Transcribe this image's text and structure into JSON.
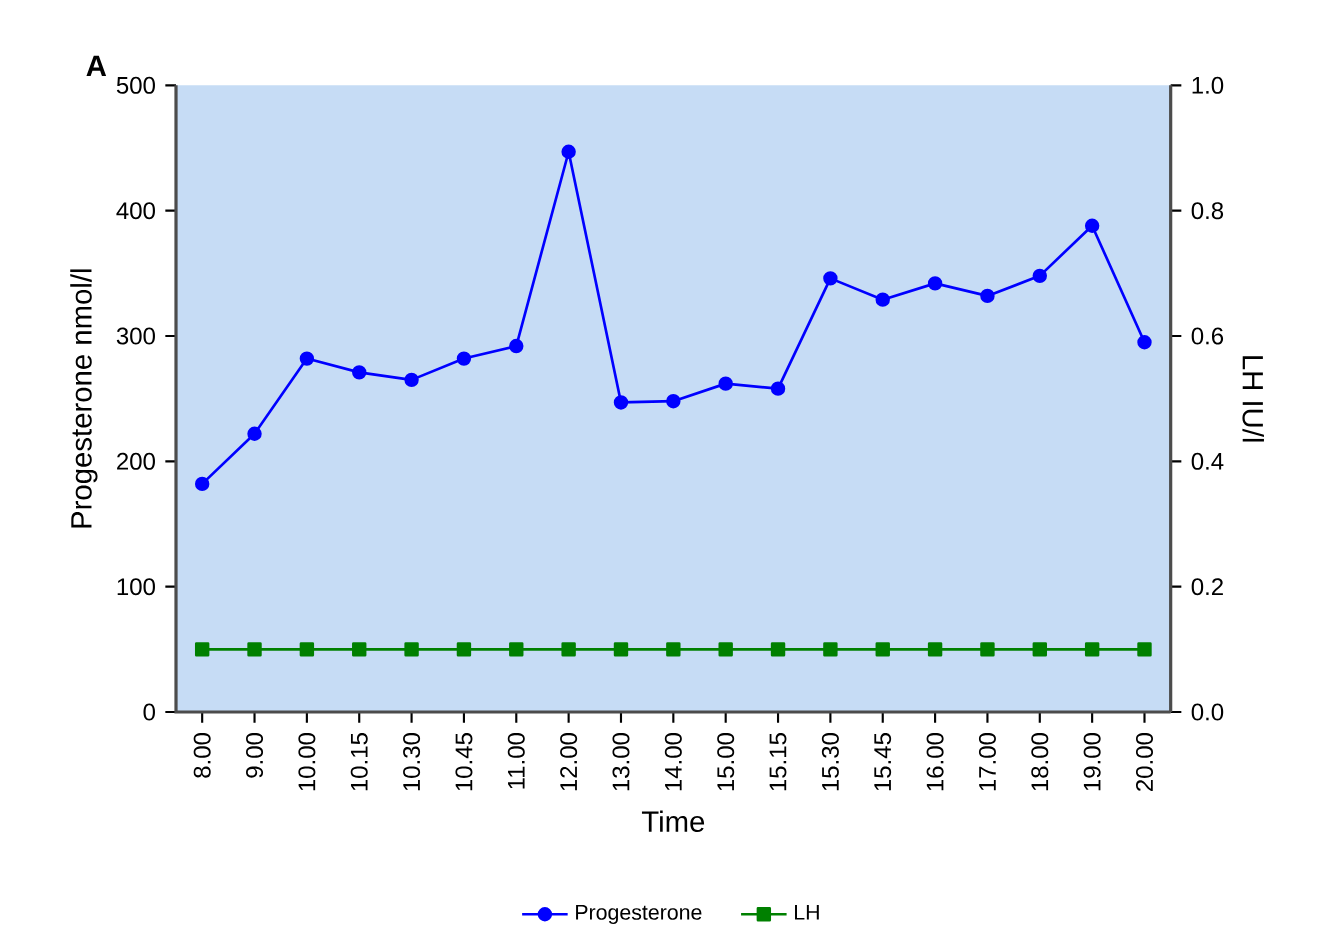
{
  "chart_data": {
    "type": "line",
    "xlabel": "Time",
    "ylabel": "Progesterone nmol/l",
    "y2label": "LH IU/l",
    "annotations": [
      "A"
    ],
    "categories": [
      "8.00",
      "9.00",
      "10.00",
      "10.15",
      "10.30",
      "10.45",
      "11.00",
      "12.00",
      "13.00",
      "14.00",
      "15.00",
      "15.15",
      "15.30",
      "15.45",
      "16.00",
      "17.00",
      "18.00",
      "19.00",
      "20.00"
    ],
    "series": [
      {
        "name": "Progesterone",
        "color": "#0000ff",
        "marker": "circle",
        "values": [
          182,
          222,
          282,
          271,
          265,
          282,
          292,
          447,
          247,
          248,
          262,
          258,
          346,
          329,
          342,
          332,
          348,
          388,
          295
        ]
      },
      {
        "name": "LH",
        "color": "#008000",
        "marker": "square",
        "axis": "y2",
        "values": [
          0.1,
          0.1,
          0.1,
          0.1,
          0.1,
          0.1,
          0.1,
          0.1,
          0.1,
          0.1,
          0.1,
          0.1,
          0.1,
          0.1,
          0.1,
          0.1,
          0.1,
          0.1,
          0.1
        ]
      }
    ],
    "ylim": [
      0,
      500
    ],
    "yticks": [
      0,
      100,
      200,
      300,
      400,
      500
    ],
    "y2lim": [
      0.0,
      1.0
    ],
    "y2ticks": [
      {
        "value": 0,
        "label": "0.0"
      },
      {
        "value": 0.2,
        "label": "0.2"
      },
      {
        "value": 0.4,
        "label": "0.4"
      },
      {
        "value": 0.6,
        "label": "0.6"
      },
      {
        "value": 0.8,
        "label": "0.8"
      },
      {
        "value": 1.0,
        "label": "1.0"
      }
    ],
    "grid": false,
    "legend": "bottom",
    "line_style": "solid"
  }
}
